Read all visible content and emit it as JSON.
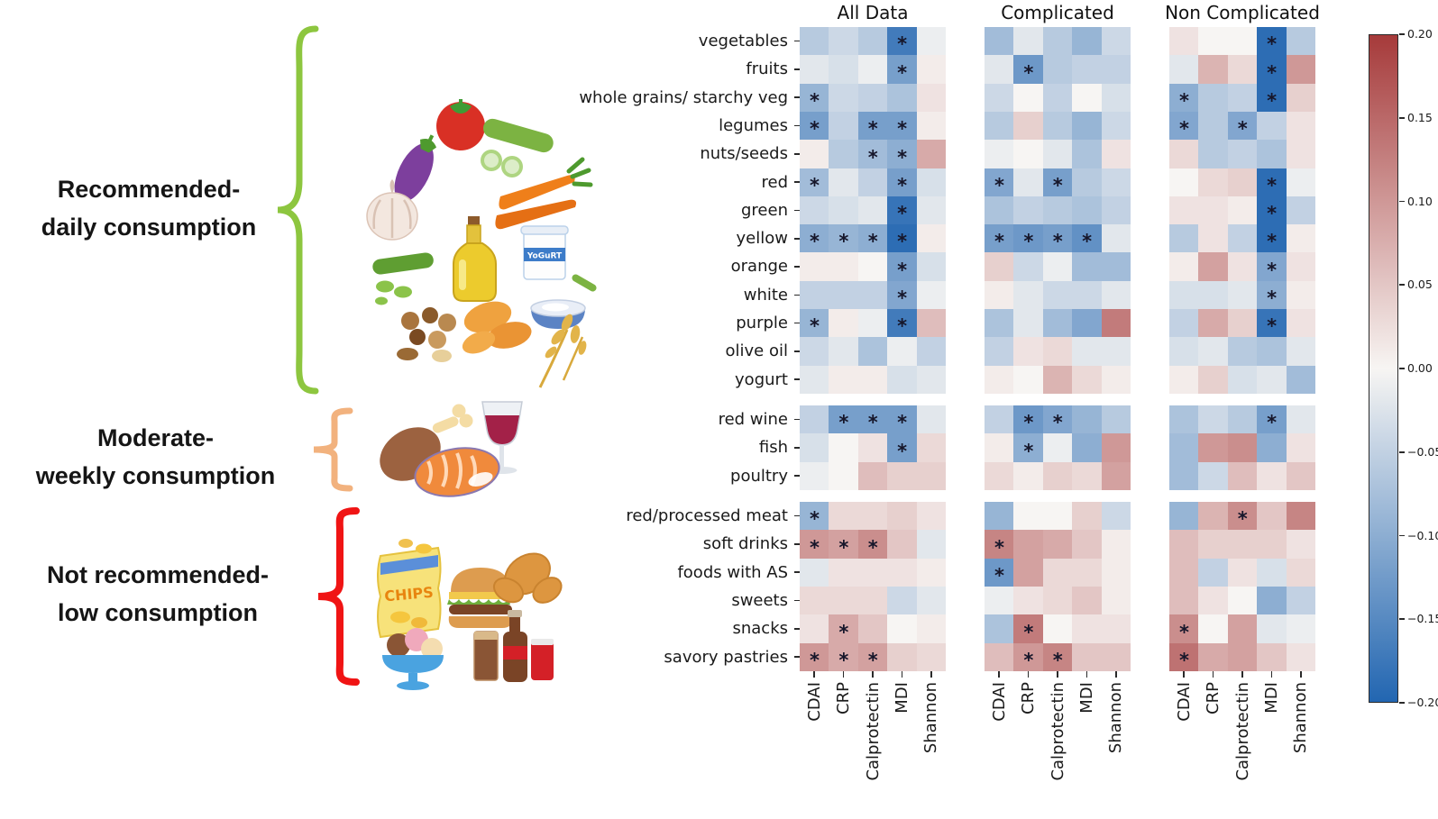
{
  "labels": {
    "recommended": {
      "line1": "Recommended-",
      "line2": "daily consumption"
    },
    "moderate": {
      "line1": "Moderate-",
      "line2": "weekly consumption"
    },
    "not_recommended": {
      "line1": "Not recommended-",
      "line2": "low consumption"
    }
  },
  "colors": {
    "brace_recommended": "#8dc63f",
    "brace_moderate": "#f2b27e",
    "brace_not_recommended": "#f01414",
    "heat_negative": "#2266b1",
    "heat_mid": "#f7f5f3",
    "heat_positive": "#a63a3a"
  },
  "food_icons": {
    "yogurt_label": "YoGuRT",
    "chips_label": "CHIPS",
    "recommended_items": [
      "tomato",
      "eggplant",
      "cucumber",
      "carrots",
      "garlic",
      "olive-oil",
      "green-beans",
      "yogurt-cup",
      "yogurt-bowl",
      "nuts",
      "sweet-potatoes",
      "wheat"
    ],
    "moderate_items": [
      "drumstick",
      "salmon",
      "red-wine-glass"
    ],
    "not_recommended_items": [
      "chips-bag",
      "hamburger",
      "croissant",
      "ice-cream",
      "soda"
    ]
  },
  "chart_data": {
    "type": "heatmap",
    "value_range": [
      -0.2,
      0.2
    ],
    "columns": [
      "CDAI",
      "CRP",
      "Calprotectin",
      "MDI",
      "Shannon"
    ],
    "row_blocks": [
      {
        "group": "recommended-daily",
        "rows": [
          "vegetables",
          "fruits",
          "whole grains/ starchy veg",
          "legumes",
          "nuts/seeds",
          "red",
          "green",
          "yellow",
          "orange",
          "white",
          "purple",
          "olive oil",
          "yogurt"
        ]
      },
      {
        "group": "moderate-weekly",
        "rows": [
          "red wine",
          "fish",
          "poultry"
        ]
      },
      {
        "group": "not-recommended-low",
        "rows": [
          "red/processed meat",
          "soft drinks",
          "foods with AS",
          "sweets",
          "snacks",
          "savory pastries"
        ]
      }
    ],
    "colorbar_ticks": [
      "0.20",
      "0.15",
      "0.10",
      "0.05",
      "0.00",
      "−0.05",
      "−0.10",
      "−0.15",
      "−0.20"
    ],
    "panels": [
      {
        "title": "All Data",
        "values": [
          [
            -0.06,
            -0.04,
            -0.06,
            -0.17,
            -0.01
          ],
          [
            -0.02,
            -0.03,
            -0.01,
            -0.12,
            0.01
          ],
          [
            -0.09,
            -0.04,
            -0.05,
            -0.07,
            0.02
          ],
          [
            -0.12,
            -0.05,
            -0.12,
            -0.12,
            0.01
          ],
          [
            0.01,
            -0.06,
            -0.08,
            -0.1,
            0.08
          ],
          [
            -0.08,
            -0.02,
            -0.05,
            -0.12,
            -0.03
          ],
          [
            -0.04,
            -0.03,
            -0.02,
            -0.18,
            -0.02
          ],
          [
            -0.1,
            -0.09,
            -0.1,
            -0.19,
            0.01
          ],
          [
            0.01,
            0.01,
            0.0,
            -0.12,
            -0.03
          ],
          [
            -0.05,
            -0.05,
            -0.05,
            -0.11,
            -0.01
          ],
          [
            -0.09,
            0.01,
            -0.01,
            -0.17,
            0.06
          ],
          [
            -0.04,
            -0.02,
            -0.07,
            -0.01,
            -0.05
          ],
          [
            -0.02,
            0.01,
            0.01,
            -0.03,
            -0.02
          ],
          [
            -0.05,
            -0.12,
            -0.12,
            -0.12,
            -0.02
          ],
          [
            -0.03,
            0.0,
            0.02,
            -0.12,
            0.03
          ],
          [
            -0.01,
            0.0,
            0.06,
            0.04,
            0.04
          ],
          [
            -0.09,
            0.03,
            0.03,
            0.04,
            0.02
          ],
          [
            0.1,
            0.09,
            0.11,
            0.05,
            -0.02
          ],
          [
            -0.02,
            0.02,
            0.02,
            0.02,
            0.01
          ],
          [
            0.03,
            0.03,
            0.03,
            -0.04,
            -0.02
          ],
          [
            0.02,
            0.08,
            0.05,
            0.0,
            0.01
          ],
          [
            0.1,
            0.08,
            0.09,
            0.04,
            0.03
          ]
        ],
        "significant": [
          [
            0,
            0,
            0,
            1,
            0
          ],
          [
            0,
            0,
            0,
            1,
            0
          ],
          [
            1,
            0,
            0,
            0,
            0
          ],
          [
            1,
            0,
            1,
            1,
            0
          ],
          [
            0,
            0,
            1,
            1,
            0
          ],
          [
            1,
            0,
            0,
            1,
            0
          ],
          [
            0,
            0,
            0,
            1,
            0
          ],
          [
            1,
            1,
            1,
            1,
            0
          ],
          [
            0,
            0,
            0,
            1,
            0
          ],
          [
            0,
            0,
            0,
            1,
            0
          ],
          [
            1,
            0,
            0,
            1,
            0
          ],
          [
            0,
            0,
            0,
            0,
            0
          ],
          [
            0,
            0,
            0,
            0,
            0
          ],
          [
            0,
            1,
            1,
            1,
            0
          ],
          [
            0,
            0,
            0,
            1,
            0
          ],
          [
            0,
            0,
            0,
            0,
            0
          ],
          [
            1,
            0,
            0,
            0,
            0
          ],
          [
            1,
            1,
            1,
            0,
            0
          ],
          [
            0,
            0,
            0,
            0,
            0
          ],
          [
            0,
            0,
            0,
            0,
            0
          ],
          [
            0,
            1,
            0,
            0,
            0
          ],
          [
            1,
            1,
            1,
            0,
            0
          ]
        ]
      },
      {
        "title": "Complicated",
        "values": [
          [
            -0.08,
            -0.02,
            -0.06,
            -0.09,
            -0.04
          ],
          [
            -0.02,
            -0.13,
            -0.06,
            -0.05,
            -0.05
          ],
          [
            -0.04,
            0.0,
            -0.05,
            0.0,
            -0.03
          ],
          [
            -0.06,
            0.04,
            -0.06,
            -0.09,
            -0.04
          ],
          [
            -0.01,
            0.0,
            -0.02,
            -0.07,
            0.02
          ],
          [
            -0.11,
            -0.02,
            -0.12,
            -0.06,
            -0.04
          ],
          [
            -0.07,
            -0.05,
            -0.06,
            -0.07,
            -0.05
          ],
          [
            -0.12,
            -0.13,
            -0.12,
            -0.14,
            -0.02
          ],
          [
            0.04,
            -0.04,
            -0.01,
            -0.08,
            -0.08
          ],
          [
            0.01,
            -0.02,
            -0.04,
            -0.04,
            -0.02
          ],
          [
            -0.07,
            -0.02,
            -0.08,
            -0.11,
            0.13
          ],
          [
            -0.05,
            0.02,
            0.03,
            -0.02,
            -0.02
          ],
          [
            0.01,
            0.0,
            0.07,
            0.03,
            0.01
          ],
          [
            -0.05,
            -0.13,
            -0.11,
            -0.09,
            -0.06
          ],
          [
            0.01,
            -0.1,
            -0.01,
            -0.1,
            0.1
          ],
          [
            0.03,
            0.01,
            0.04,
            0.03,
            0.09
          ],
          [
            -0.09,
            0.0,
            0.0,
            0.04,
            -0.04
          ],
          [
            0.12,
            0.09,
            0.08,
            0.05,
            0.01
          ],
          [
            -0.13,
            0.09,
            0.03,
            0.03,
            0.01
          ],
          [
            -0.01,
            0.02,
            0.03,
            0.05,
            0.01
          ],
          [
            -0.07,
            0.13,
            0.0,
            0.02,
            0.02
          ],
          [
            0.06,
            0.1,
            0.12,
            0.05,
            0.05
          ]
        ],
        "significant": [
          [
            0,
            0,
            0,
            0,
            0
          ],
          [
            0,
            1,
            0,
            0,
            0
          ],
          [
            0,
            0,
            0,
            0,
            0
          ],
          [
            0,
            0,
            0,
            0,
            0
          ],
          [
            0,
            0,
            0,
            0,
            0
          ],
          [
            1,
            0,
            1,
            0,
            0
          ],
          [
            0,
            0,
            0,
            0,
            0
          ],
          [
            1,
            1,
            1,
            1,
            0
          ],
          [
            0,
            0,
            0,
            0,
            0
          ],
          [
            0,
            0,
            0,
            0,
            0
          ],
          [
            0,
            0,
            0,
            0,
            0
          ],
          [
            0,
            0,
            0,
            0,
            0
          ],
          [
            0,
            0,
            0,
            0,
            0
          ],
          [
            0,
            1,
            1,
            0,
            0
          ],
          [
            0,
            1,
            0,
            0,
            0
          ],
          [
            0,
            0,
            0,
            0,
            0
          ],
          [
            0,
            0,
            0,
            0,
            0
          ],
          [
            1,
            0,
            0,
            0,
            0
          ],
          [
            1,
            0,
            0,
            0,
            0
          ],
          [
            0,
            0,
            0,
            0,
            0
          ],
          [
            0,
            1,
            0,
            0,
            0
          ],
          [
            0,
            1,
            1,
            0,
            0
          ]
        ]
      },
      {
        "title": "Non Complicated",
        "values": [
          [
            0.02,
            0.0,
            0.0,
            -0.19,
            -0.06
          ],
          [
            -0.02,
            0.07,
            0.03,
            -0.19,
            0.1
          ],
          [
            -0.1,
            -0.06,
            -0.05,
            -0.19,
            0.04
          ],
          [
            -0.11,
            -0.06,
            -0.11,
            -0.05,
            0.02
          ],
          [
            0.03,
            -0.06,
            -0.05,
            -0.07,
            0.02
          ],
          [
            0.0,
            0.03,
            0.04,
            -0.19,
            -0.01
          ],
          [
            0.02,
            0.02,
            0.01,
            -0.19,
            -0.05
          ],
          [
            -0.06,
            0.02,
            -0.05,
            -0.19,
            0.01
          ],
          [
            0.01,
            0.09,
            0.02,
            -0.11,
            0.02
          ],
          [
            -0.03,
            -0.03,
            -0.02,
            -0.1,
            0.01
          ],
          [
            -0.05,
            0.08,
            0.04,
            -0.18,
            0.02
          ],
          [
            -0.03,
            -0.02,
            -0.06,
            -0.07,
            -0.02
          ],
          [
            0.01,
            0.04,
            -0.03,
            -0.02,
            -0.08
          ],
          [
            -0.07,
            -0.04,
            -0.06,
            -0.12,
            -0.02
          ],
          [
            -0.08,
            0.1,
            0.11,
            -0.1,
            0.02
          ],
          [
            -0.08,
            -0.04,
            0.06,
            0.02,
            0.05
          ],
          [
            -0.09,
            0.07,
            0.11,
            0.05,
            0.12
          ],
          [
            0.06,
            0.04,
            0.04,
            0.04,
            0.02
          ],
          [
            0.06,
            -0.05,
            0.02,
            -0.03,
            0.03
          ],
          [
            0.06,
            0.02,
            0.0,
            -0.1,
            -0.05
          ],
          [
            0.11,
            0.0,
            0.09,
            -0.02,
            -0.01
          ],
          [
            0.14,
            0.08,
            0.09,
            0.05,
            0.02
          ]
        ],
        "significant": [
          [
            0,
            0,
            0,
            1,
            0
          ],
          [
            0,
            0,
            0,
            1,
            0
          ],
          [
            1,
            0,
            0,
            1,
            0
          ],
          [
            1,
            0,
            1,
            0,
            0
          ],
          [
            0,
            0,
            0,
            0,
            0
          ],
          [
            0,
            0,
            0,
            1,
            0
          ],
          [
            0,
            0,
            0,
            1,
            0
          ],
          [
            0,
            0,
            0,
            1,
            0
          ],
          [
            0,
            0,
            0,
            1,
            0
          ],
          [
            0,
            0,
            0,
            1,
            0
          ],
          [
            0,
            0,
            0,
            1,
            0
          ],
          [
            0,
            0,
            0,
            0,
            0
          ],
          [
            0,
            0,
            0,
            0,
            0
          ],
          [
            0,
            0,
            0,
            1,
            0
          ],
          [
            0,
            0,
            0,
            0,
            0
          ],
          [
            0,
            0,
            0,
            0,
            0
          ],
          [
            0,
            0,
            1,
            0,
            0
          ],
          [
            0,
            0,
            0,
            0,
            0
          ],
          [
            0,
            0,
            0,
            0,
            0
          ],
          [
            0,
            0,
            0,
            0,
            0
          ],
          [
            1,
            0,
            0,
            0,
            0
          ],
          [
            1,
            0,
            0,
            0,
            0
          ]
        ]
      }
    ]
  }
}
